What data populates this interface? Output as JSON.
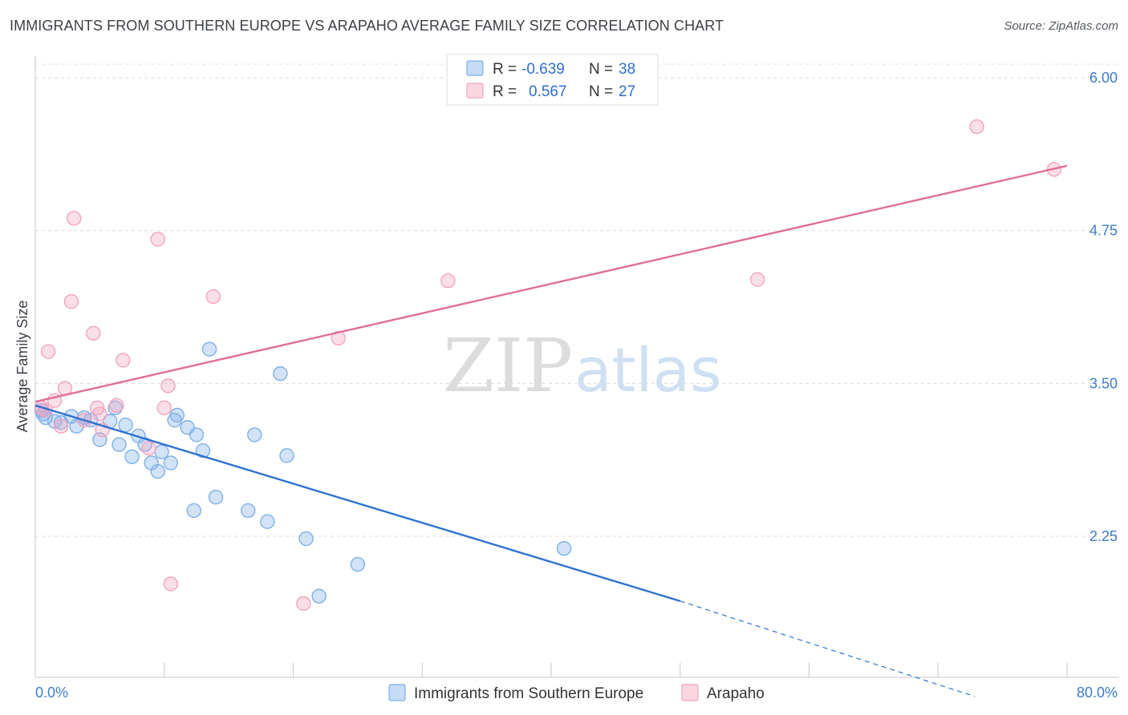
{
  "header": {
    "title": "IMMIGRANTS FROM SOUTHERN EUROPE VS ARAPAHO AVERAGE FAMILY SIZE CORRELATION CHART",
    "source": "Source: ZipAtlas.com"
  },
  "watermark": {
    "part1": "ZIP",
    "part2": "atlas"
  },
  "legend_top": {
    "rows": [
      {
        "r_label": "R =",
        "r_value": "-0.639",
        "n_label": "N =",
        "n_value": "38",
        "color": "#7fb0ea"
      },
      {
        "r_label": "R =",
        "r_value": "0.567",
        "n_label": "N =",
        "n_value": "27",
        "color": "#f4a3bd"
      }
    ]
  },
  "chart_data": {
    "type": "scatter",
    "xlabel": "",
    "ylabel": "Average Family Size",
    "xlim": [
      0,
      80
    ],
    "ylim": [
      1.0,
      6.25
    ],
    "x_tick_labels": [
      "0.0%",
      "80.0%"
    ],
    "y_ticks": [
      2.25,
      3.5,
      4.75,
      6.0
    ],
    "y_tick_labels": [
      "2.25",
      "3.50",
      "4.75",
      "6.00"
    ],
    "grid": "horizontal dashed",
    "legend_position": "top-center and bottom",
    "series": [
      {
        "name": "Immigrants from Southern Europe",
        "color": "#7fb0ea",
        "line_color": "#2e72d2",
        "trend": {
          "x0": 0,
          "y0": 3.32,
          "x1": 50,
          "y1": 1.72,
          "extend_to_x": 80,
          "extend_to_y": 0.94
        },
        "points": [
          [
            0.5,
            3.28
          ],
          [
            0.8,
            3.22
          ],
          [
            1.5,
            3.19
          ],
          [
            2.0,
            3.18
          ],
          [
            2.8,
            3.23
          ],
          [
            3.2,
            3.15
          ],
          [
            3.8,
            3.22
          ],
          [
            4.3,
            3.2
          ],
          [
            5.0,
            3.04
          ],
          [
            5.8,
            3.19
          ],
          [
            6.2,
            3.3
          ],
          [
            6.5,
            3.0
          ],
          [
            7.0,
            3.16
          ],
          [
            7.5,
            2.9
          ],
          [
            8.0,
            3.07
          ],
          [
            8.5,
            3.0
          ],
          [
            9.0,
            2.85
          ],
          [
            9.5,
            2.78
          ],
          [
            9.8,
            2.94
          ],
          [
            10.5,
            2.85
          ],
          [
            10.8,
            3.2
          ],
          [
            11.0,
            3.24
          ],
          [
            11.8,
            3.14
          ],
          [
            12.5,
            3.08
          ],
          [
            13.0,
            2.95
          ],
          [
            12.3,
            2.46
          ],
          [
            13.5,
            3.78
          ],
          [
            14.0,
            2.57
          ],
          [
            16.5,
            2.46
          ],
          [
            17.0,
            3.08
          ],
          [
            18.0,
            2.37
          ],
          [
            19.0,
            3.58
          ],
          [
            19.5,
            2.91
          ],
          [
            21.0,
            2.23
          ],
          [
            22.0,
            1.76
          ],
          [
            25.0,
            2.02
          ],
          [
            41.0,
            2.15
          ],
          [
            0.6,
            3.25
          ]
        ]
      },
      {
        "name": "Arapaho",
        "color": "#f4a3bd",
        "line_color": "#e06f97",
        "trend": {
          "x0": 0,
          "y0": 3.35,
          "x1": 80,
          "y1": 5.28
        },
        "points": [
          [
            0.5,
            3.3
          ],
          [
            0.8,
            3.28
          ],
          [
            1.0,
            3.76
          ],
          [
            1.5,
            3.36
          ],
          [
            2.0,
            3.15
          ],
          [
            2.3,
            3.46
          ],
          [
            2.8,
            4.17
          ],
          [
            3.0,
            4.85
          ],
          [
            3.8,
            3.2
          ],
          [
            4.5,
            3.91
          ],
          [
            4.8,
            3.3
          ],
          [
            5.0,
            3.25
          ],
          [
            5.2,
            3.12
          ],
          [
            6.3,
            3.32
          ],
          [
            6.8,
            3.69
          ],
          [
            8.8,
            2.97
          ],
          [
            9.5,
            4.68
          ],
          [
            10.0,
            3.3
          ],
          [
            10.3,
            3.48
          ],
          [
            10.5,
            1.86
          ],
          [
            13.8,
            4.21
          ],
          [
            20.8,
            1.7
          ],
          [
            23.5,
            3.87
          ],
          [
            32.0,
            4.34
          ],
          [
            56.0,
            4.35
          ],
          [
            73.0,
            5.6
          ],
          [
            79.0,
            5.25
          ]
        ]
      }
    ]
  },
  "legend_bottom": {
    "items": [
      {
        "label": "Immigrants from Southern Europe",
        "color": "#7fb0ea"
      },
      {
        "label": "Arapaho",
        "color": "#f4a3bd"
      }
    ]
  }
}
